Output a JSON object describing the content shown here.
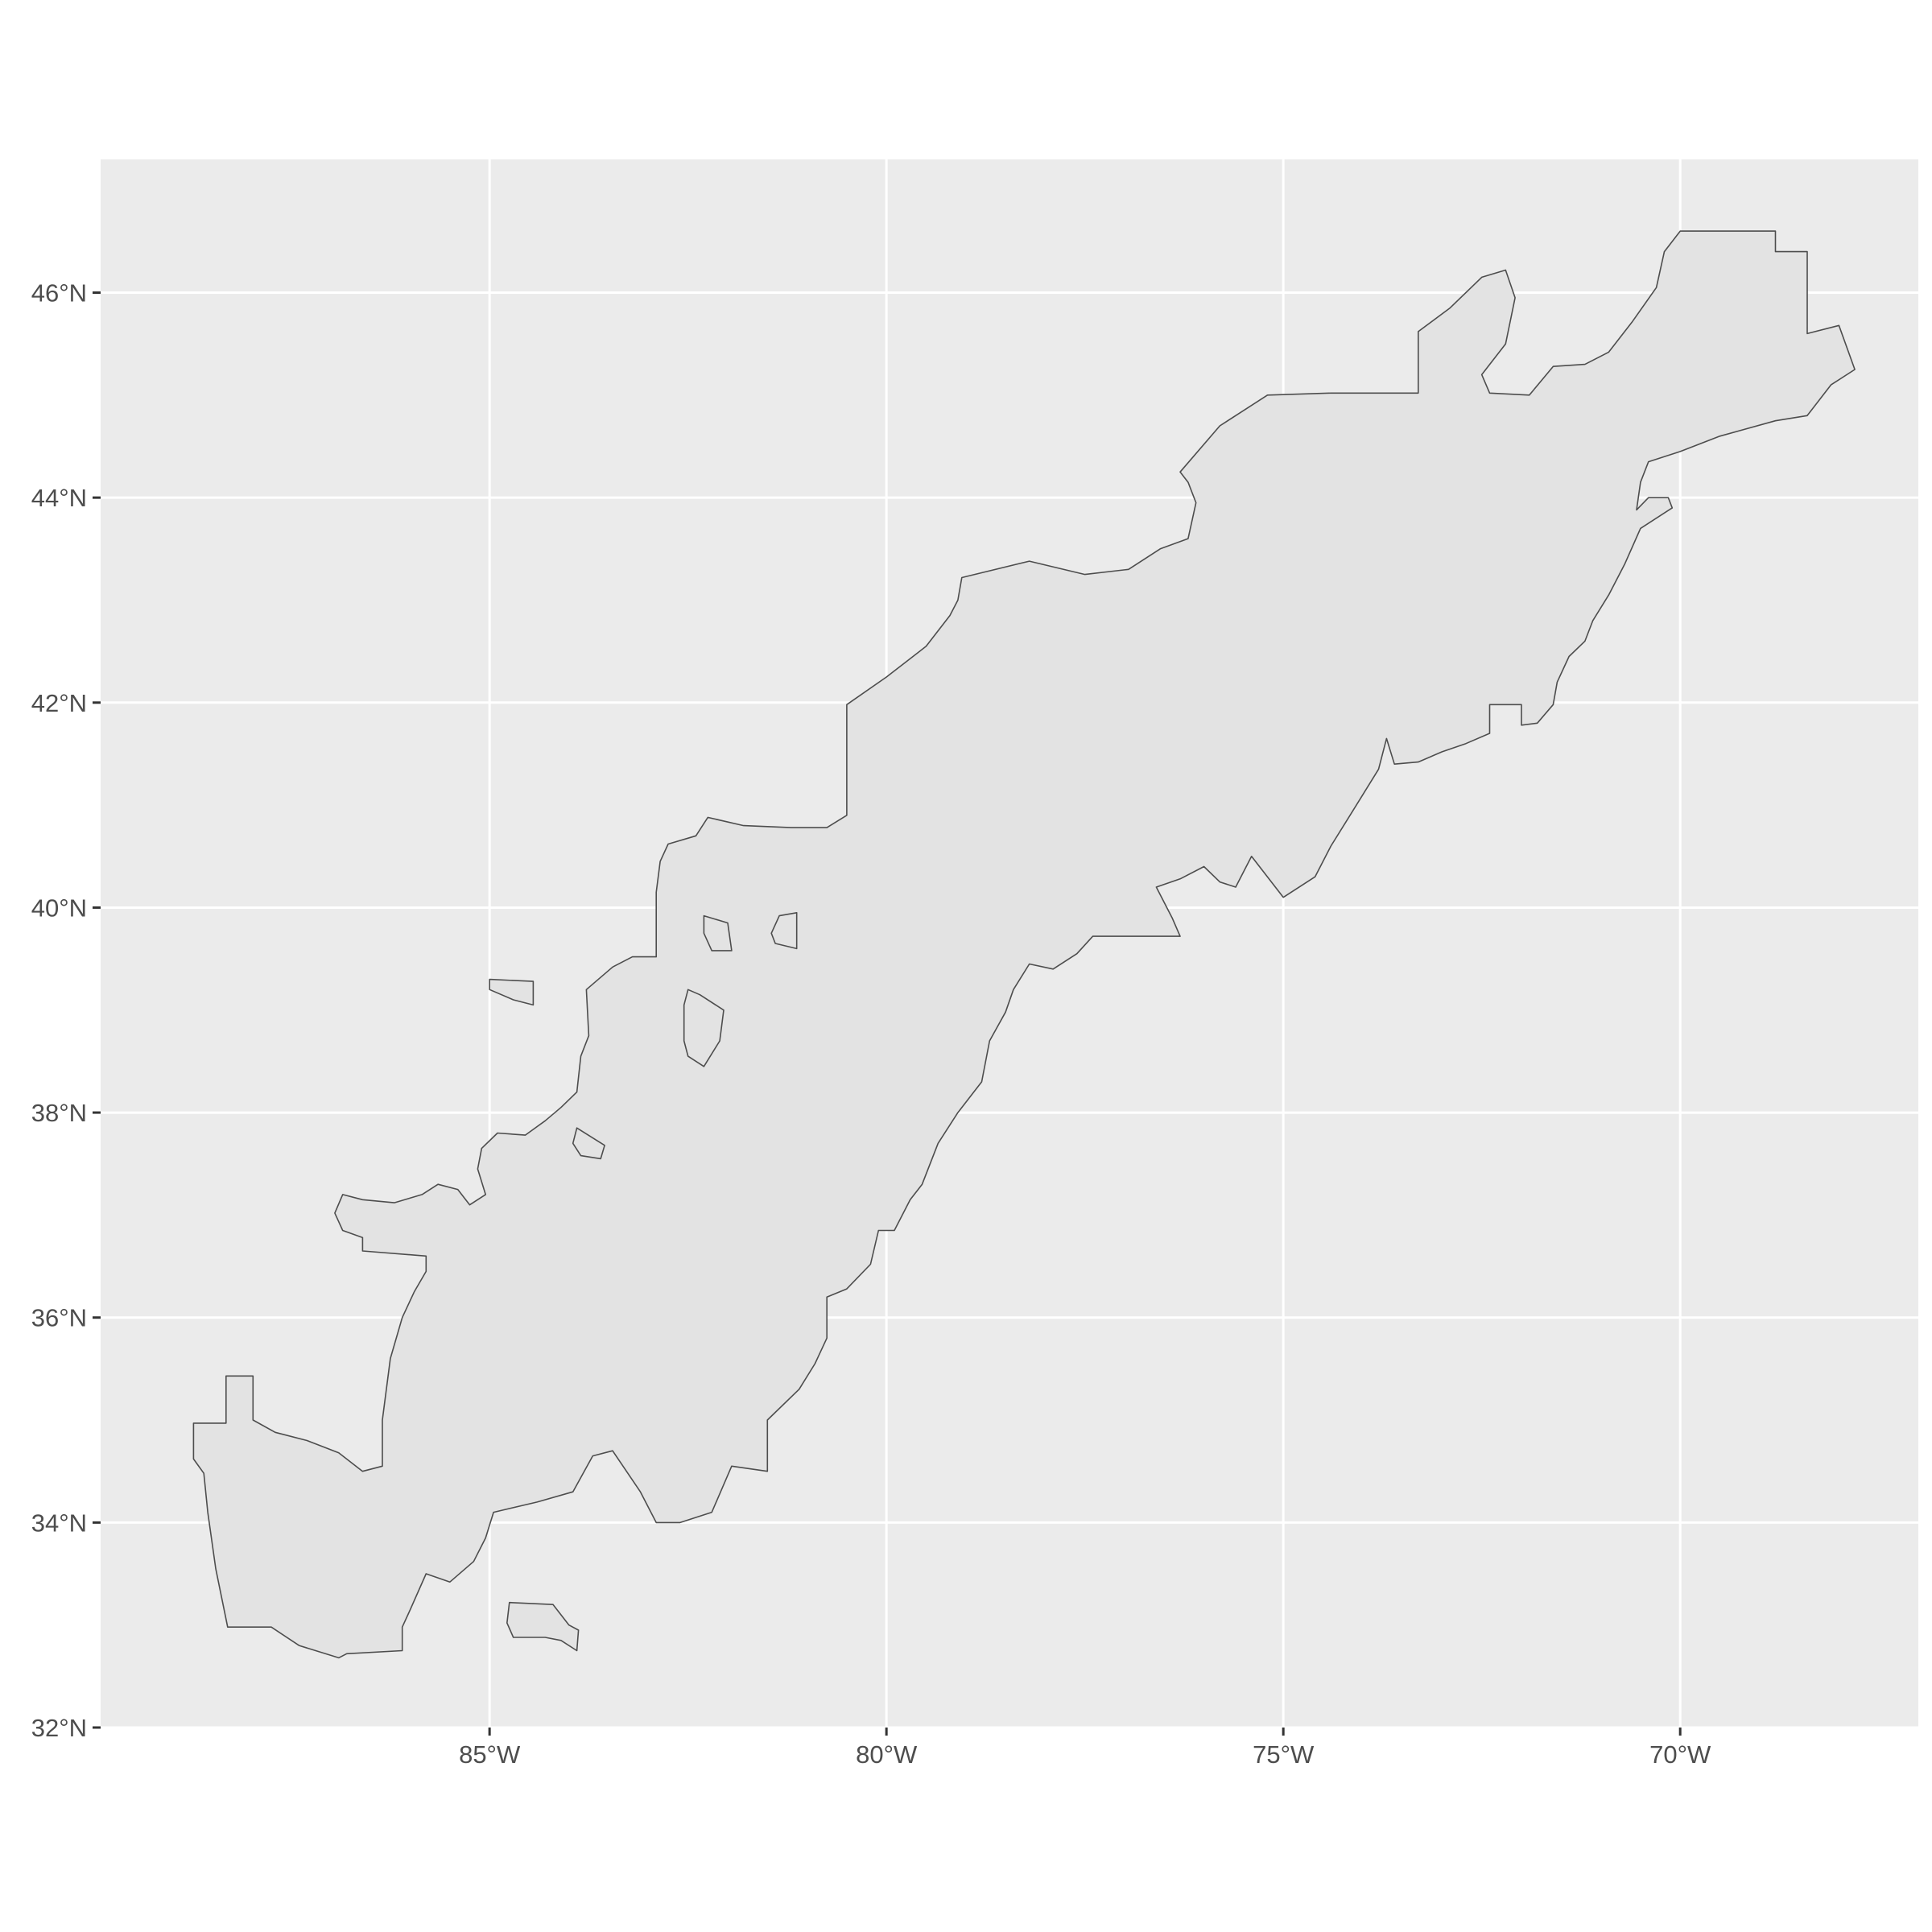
{
  "chart_data": {
    "type": "map",
    "title": "",
    "xlabel": "",
    "ylabel": "",
    "projection": "geographic (longitude/latitude)",
    "xlim": [
      -89.9,
      -67.0
    ],
    "ylim": [
      32.0,
      47.3
    ],
    "grid": true,
    "legend": "none",
    "x_ticks": [
      {
        "value": -85,
        "label": "85°W"
      },
      {
        "value": -80,
        "label": "80°W"
      },
      {
        "value": -75,
        "label": "75°W"
      },
      {
        "value": -70,
        "label": "70°W"
      }
    ],
    "y_ticks": [
      {
        "value": 32,
        "label": "32°N"
      },
      {
        "value": 34,
        "label": "34°N"
      },
      {
        "value": 36,
        "label": "36°N"
      },
      {
        "value": 38,
        "label": "38°N"
      },
      {
        "value": 40,
        "label": "40°N"
      },
      {
        "value": 42,
        "label": "42°N"
      },
      {
        "value": 44,
        "label": "44°N"
      },
      {
        "value": 46,
        "label": "46°N"
      }
    ],
    "colors": {
      "panel_background": "#ebebeb",
      "grid": "#ffffff",
      "region_fill": "#e3e3e3",
      "region_outline": "#4d4d4d",
      "tick_label": "#4d4d4d",
      "axis_tick": "#333333"
    },
    "regions": [
      {
        "name": "main",
        "coords": [
          [
            -88.73,
            34.97
          ],
          [
            -88.32,
            34.97
          ],
          [
            -88.32,
            35.43
          ],
          [
            -87.98,
            35.43
          ],
          [
            -87.98,
            35.0
          ],
          [
            -87.7,
            34.88
          ],
          [
            -87.3,
            34.8
          ],
          [
            -86.9,
            34.68
          ],
          [
            -86.6,
            34.5
          ],
          [
            -86.35,
            34.55
          ],
          [
            -86.35,
            35.0
          ],
          [
            -86.25,
            35.6
          ],
          [
            -86.1,
            36.0
          ],
          [
            -85.95,
            36.25
          ],
          [
            -85.8,
            36.45
          ],
          [
            -85.8,
            36.6
          ],
          [
            -86.6,
            36.65
          ],
          [
            -86.6,
            36.78
          ],
          [
            -86.85,
            36.85
          ],
          [
            -86.95,
            37.02
          ],
          [
            -86.85,
            37.2
          ],
          [
            -86.6,
            37.15
          ],
          [
            -86.2,
            37.12
          ],
          [
            -85.85,
            37.2
          ],
          [
            -85.65,
            37.3
          ],
          [
            -85.4,
            37.25
          ],
          [
            -85.25,
            37.1
          ],
          [
            -85.05,
            37.2
          ],
          [
            -85.15,
            37.45
          ],
          [
            -85.1,
            37.65
          ],
          [
            -84.9,
            37.8
          ],
          [
            -84.55,
            37.78
          ],
          [
            -84.3,
            37.92
          ],
          [
            -84.1,
            38.05
          ],
          [
            -83.9,
            38.2
          ],
          [
            -83.85,
            38.55
          ],
          [
            -83.75,
            38.75
          ],
          [
            -83.78,
            39.2
          ],
          [
            -83.45,
            39.42
          ],
          [
            -83.2,
            39.52
          ],
          [
            -82.9,
            39.52
          ],
          [
            -82.9,
            40.15
          ],
          [
            -82.85,
            40.45
          ],
          [
            -82.75,
            40.62
          ],
          [
            -82.4,
            40.7
          ],
          [
            -82.25,
            40.88
          ],
          [
            -81.8,
            40.8
          ],
          [
            -81.2,
            40.78
          ],
          [
            -80.75,
            40.78
          ],
          [
            -80.5,
            40.9
          ],
          [
            -80.5,
            41.98
          ],
          [
            -80.0,
            42.25
          ],
          [
            -79.5,
            42.55
          ],
          [
            -79.2,
            42.85
          ],
          [
            -79.1,
            43.0
          ],
          [
            -79.05,
            43.22
          ],
          [
            -78.2,
            43.38
          ],
          [
            -77.5,
            43.25
          ],
          [
            -76.95,
            43.3
          ],
          [
            -76.55,
            43.5
          ],
          [
            -76.2,
            43.6
          ],
          [
            -76.1,
            43.95
          ],
          [
            -76.2,
            44.15
          ],
          [
            -76.3,
            44.25
          ],
          [
            -75.8,
            44.7
          ],
          [
            -75.2,
            45.0
          ],
          [
            -74.4,
            45.02
          ],
          [
            -73.6,
            45.02
          ],
          [
            -73.3,
            45.02
          ],
          [
            -73.3,
            45.62
          ],
          [
            -72.9,
            45.85
          ],
          [
            -72.5,
            46.15
          ],
          [
            -72.2,
            46.22
          ],
          [
            -72.08,
            45.95
          ],
          [
            -72.2,
            45.5
          ],
          [
            -72.5,
            45.2
          ],
          [
            -72.4,
            45.02
          ],
          [
            -71.9,
            45.0
          ],
          [
            -71.6,
            45.28
          ],
          [
            -71.2,
            45.3
          ],
          [
            -70.9,
            45.42
          ],
          [
            -70.6,
            45.72
          ],
          [
            -70.3,
            46.05
          ],
          [
            -70.2,
            46.4
          ],
          [
            -70.0,
            46.6
          ],
          [
            -68.8,
            46.6
          ],
          [
            -68.8,
            46.4
          ],
          [
            -68.4,
            46.4
          ],
          [
            -68.4,
            45.6
          ],
          [
            -68.0,
            45.68
          ],
          [
            -67.8,
            45.25
          ],
          [
            -68.1,
            45.1
          ],
          [
            -68.4,
            44.8
          ],
          [
            -68.8,
            44.75
          ],
          [
            -69.5,
            44.6
          ],
          [
            -70.0,
            44.45
          ],
          [
            -70.4,
            44.35
          ],
          [
            -70.5,
            44.15
          ],
          [
            -70.55,
            43.88
          ],
          [
            -70.4,
            44.0
          ],
          [
            -70.15,
            44.0
          ],
          [
            -70.1,
            43.9
          ],
          [
            -70.5,
            43.7
          ],
          [
            -70.7,
            43.35
          ],
          [
            -70.9,
            43.05
          ],
          [
            -71.1,
            42.8
          ],
          [
            -71.2,
            42.6
          ],
          [
            -71.4,
            42.45
          ],
          [
            -71.55,
            42.2
          ],
          [
            -71.6,
            41.98
          ],
          [
            -71.8,
            41.8
          ],
          [
            -72.0,
            41.78
          ],
          [
            -72.0,
            41.98
          ],
          [
            -72.4,
            41.98
          ],
          [
            -72.4,
            41.7
          ],
          [
            -72.7,
            41.6
          ],
          [
            -73.0,
            41.52
          ],
          [
            -73.3,
            41.42
          ],
          [
            -73.6,
            41.4
          ],
          [
            -73.7,
            41.65
          ],
          [
            -73.8,
            41.35
          ],
          [
            -74.0,
            41.1
          ],
          [
            -74.2,
            40.85
          ],
          [
            -74.4,
            40.6
          ],
          [
            -74.6,
            40.3
          ],
          [
            -75.0,
            40.1
          ],
          [
            -75.4,
            40.5
          ],
          [
            -75.6,
            40.2
          ],
          [
            -75.8,
            40.25
          ],
          [
            -76.0,
            40.4
          ],
          [
            -76.3,
            40.28
          ],
          [
            -76.6,
            40.2
          ],
          [
            -76.4,
            39.9
          ],
          [
            -76.3,
            39.72
          ],
          [
            -77.4,
            39.72
          ],
          [
            -77.6,
            39.55
          ],
          [
            -77.9,
            39.4
          ],
          [
            -78.2,
            39.45
          ],
          [
            -78.4,
            39.2
          ],
          [
            -78.5,
            38.98
          ],
          [
            -78.7,
            38.7
          ],
          [
            -78.8,
            38.3
          ],
          [
            -79.1,
            38.0
          ],
          [
            -79.35,
            37.7
          ],
          [
            -79.55,
            37.3
          ],
          [
            -79.7,
            37.15
          ],
          [
            -79.9,
            36.85
          ],
          [
            -80.1,
            36.85
          ],
          [
            -80.2,
            36.52
          ],
          [
            -80.5,
            36.28
          ],
          [
            -80.75,
            36.2
          ],
          [
            -80.75,
            35.8
          ],
          [
            -80.9,
            35.55
          ],
          [
            -81.1,
            35.3
          ],
          [
            -81.5,
            35.0
          ],
          [
            -81.5,
            34.5
          ],
          [
            -81.95,
            34.55
          ],
          [
            -82.2,
            34.1
          ],
          [
            -82.6,
            34.0
          ],
          [
            -82.9,
            34.0
          ],
          [
            -83.1,
            34.3
          ],
          [
            -83.45,
            34.7
          ],
          [
            -83.7,
            34.65
          ],
          [
            -83.95,
            34.3
          ],
          [
            -84.4,
            34.2
          ],
          [
            -84.95,
            34.1
          ],
          [
            -85.05,
            33.85
          ],
          [
            -85.2,
            33.62
          ],
          [
            -85.5,
            33.42
          ],
          [
            -85.8,
            33.5
          ],
          [
            -86.0,
            33.15
          ],
          [
            -86.1,
            32.98
          ],
          [
            -86.1,
            32.75
          ],
          [
            -86.8,
            32.72
          ],
          [
            -86.9,
            32.68
          ],
          [
            -87.4,
            32.8
          ],
          [
            -87.75,
            32.98
          ],
          [
            -88.3,
            32.98
          ],
          [
            -88.45,
            33.55
          ],
          [
            -88.55,
            34.1
          ],
          [
            -88.6,
            34.48
          ],
          [
            -88.73,
            34.62
          ]
        ]
      },
      {
        "name": "island-alabama",
        "coords": [
          [
            -84.75,
            33.22
          ],
          [
            -84.2,
            33.2
          ],
          [
            -84.0,
            33.0
          ],
          [
            -83.88,
            32.95
          ],
          [
            -83.9,
            32.75
          ],
          [
            -84.1,
            32.85
          ],
          [
            -84.3,
            32.88
          ],
          [
            -84.7,
            32.88
          ],
          [
            -84.78,
            33.02
          ]
        ]
      },
      {
        "name": "island-ohio",
        "coords": [
          [
            -85.0,
            39.3
          ],
          [
            -84.45,
            39.28
          ],
          [
            -84.45,
            39.05
          ],
          [
            -84.7,
            39.1
          ],
          [
            -85.0,
            39.2
          ]
        ]
      },
      {
        "name": "island-kentucky",
        "coords": [
          [
            -83.9,
            37.85
          ],
          [
            -83.55,
            37.68
          ],
          [
            -83.6,
            37.55
          ],
          [
            -83.85,
            37.58
          ],
          [
            -83.95,
            37.7
          ]
        ]
      },
      {
        "name": "island-west-virginia",
        "coords": [
          [
            -82.5,
            39.2
          ],
          [
            -82.35,
            39.15
          ],
          [
            -82.05,
            39.0
          ],
          [
            -82.1,
            38.7
          ],
          [
            -82.3,
            38.45
          ],
          [
            -82.5,
            38.55
          ],
          [
            -82.55,
            38.7
          ],
          [
            -82.55,
            39.05
          ]
        ]
      },
      {
        "name": "island-central-ohio-west",
        "coords": [
          [
            -82.3,
            39.92
          ],
          [
            -82.0,
            39.85
          ],
          [
            -81.95,
            39.58
          ],
          [
            -82.2,
            39.58
          ],
          [
            -82.3,
            39.75
          ]
        ]
      },
      {
        "name": "island-central-ohio-east",
        "coords": [
          [
            -81.35,
            39.92
          ],
          [
            -81.13,
            39.95
          ],
          [
            -81.13,
            39.6
          ],
          [
            -81.4,
            39.65
          ],
          [
            -81.45,
            39.75
          ]
        ]
      }
    ]
  }
}
